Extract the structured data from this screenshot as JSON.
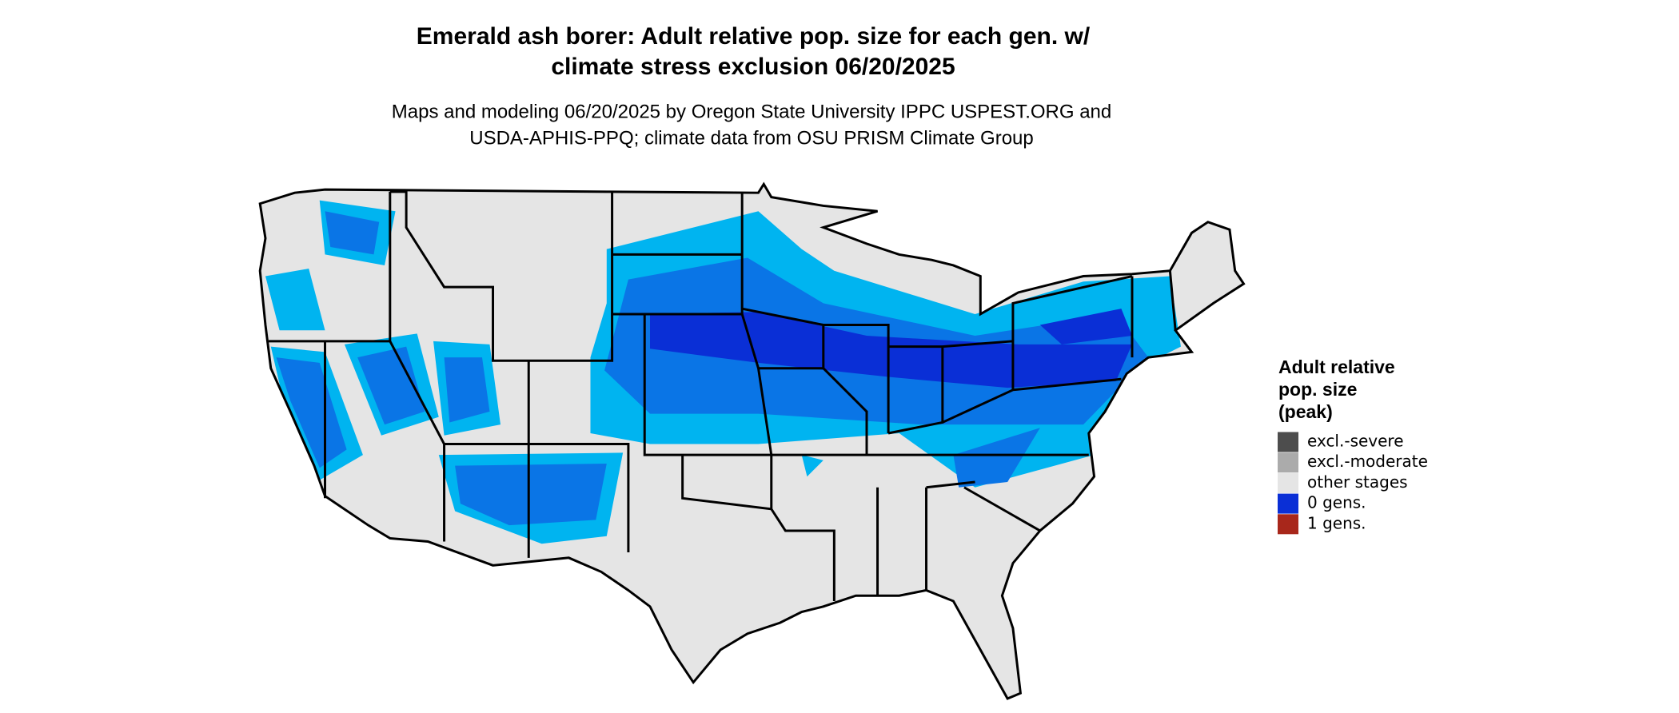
{
  "title": [
    "Emerald ash borer: Adult relative pop. size for each gen. w/",
    "climate stress exclusion 06/20/2025"
  ],
  "subtitle": [
    "Maps and modeling 06/20/2025 by Oregon State University IPPC USPEST.ORG and",
    "USDA-APHIS-PPQ; climate data from OSU PRISM Climate Group"
  ],
  "legend": {
    "title": [
      "Adult relative",
      "pop. size",
      "(peak)"
    ],
    "items": [
      {
        "label": "excl.-severe",
        "color": "#4d4d4d"
      },
      {
        "label": "excl.-moderate",
        "color": "#ababab"
      },
      {
        "label": "other stages",
        "color": "#e5e5e5"
      },
      {
        "label": "0 gens.",
        "color": "#0a2fd6"
      },
      {
        "label": "1 gens.",
        "color": "#a8271b"
      }
    ]
  }
}
